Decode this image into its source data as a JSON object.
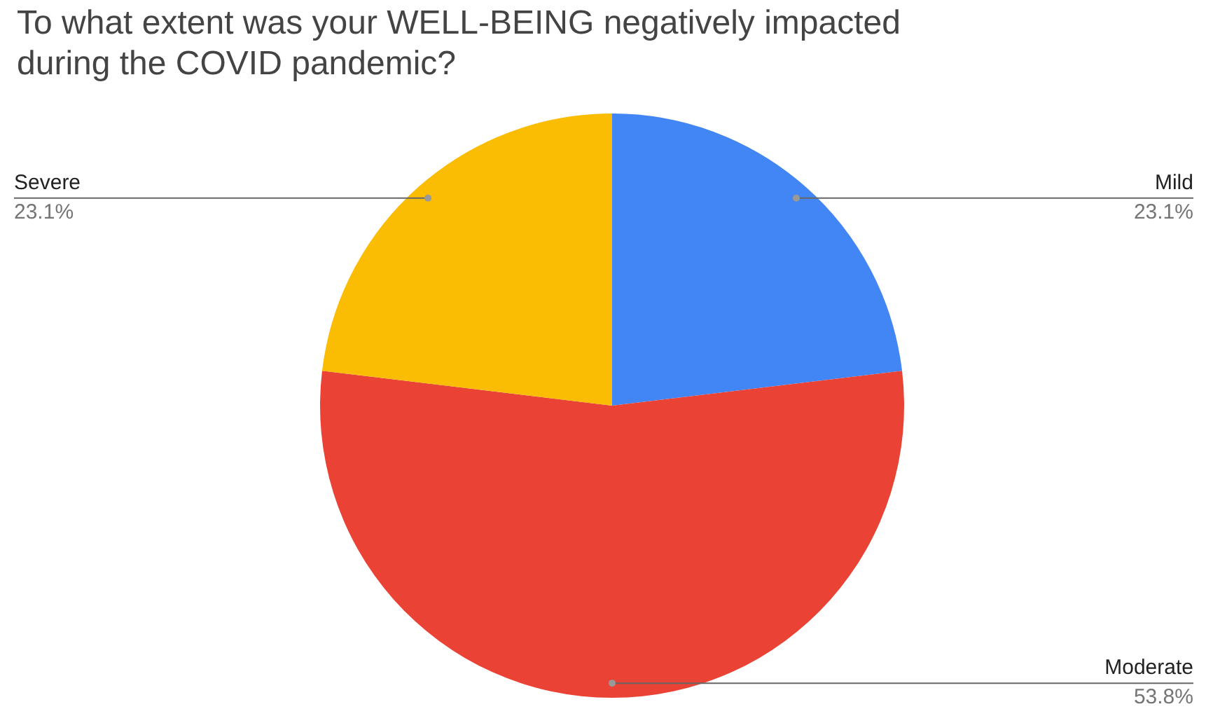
{
  "chart_data": {
    "type": "pie",
    "title": "To what extent was your WELL-BEING negatively impacted during the COVID pandemic?",
    "categories": [
      "Mild",
      "Moderate",
      "Severe"
    ],
    "values": [
      23.1,
      53.8,
      23.1
    ],
    "value_labels": [
      "23.1%",
      "53.8%",
      "23.1%"
    ],
    "colors": [
      "#4285f4",
      "#ea4335",
      "#fbbc04"
    ],
    "legend": false
  }
}
